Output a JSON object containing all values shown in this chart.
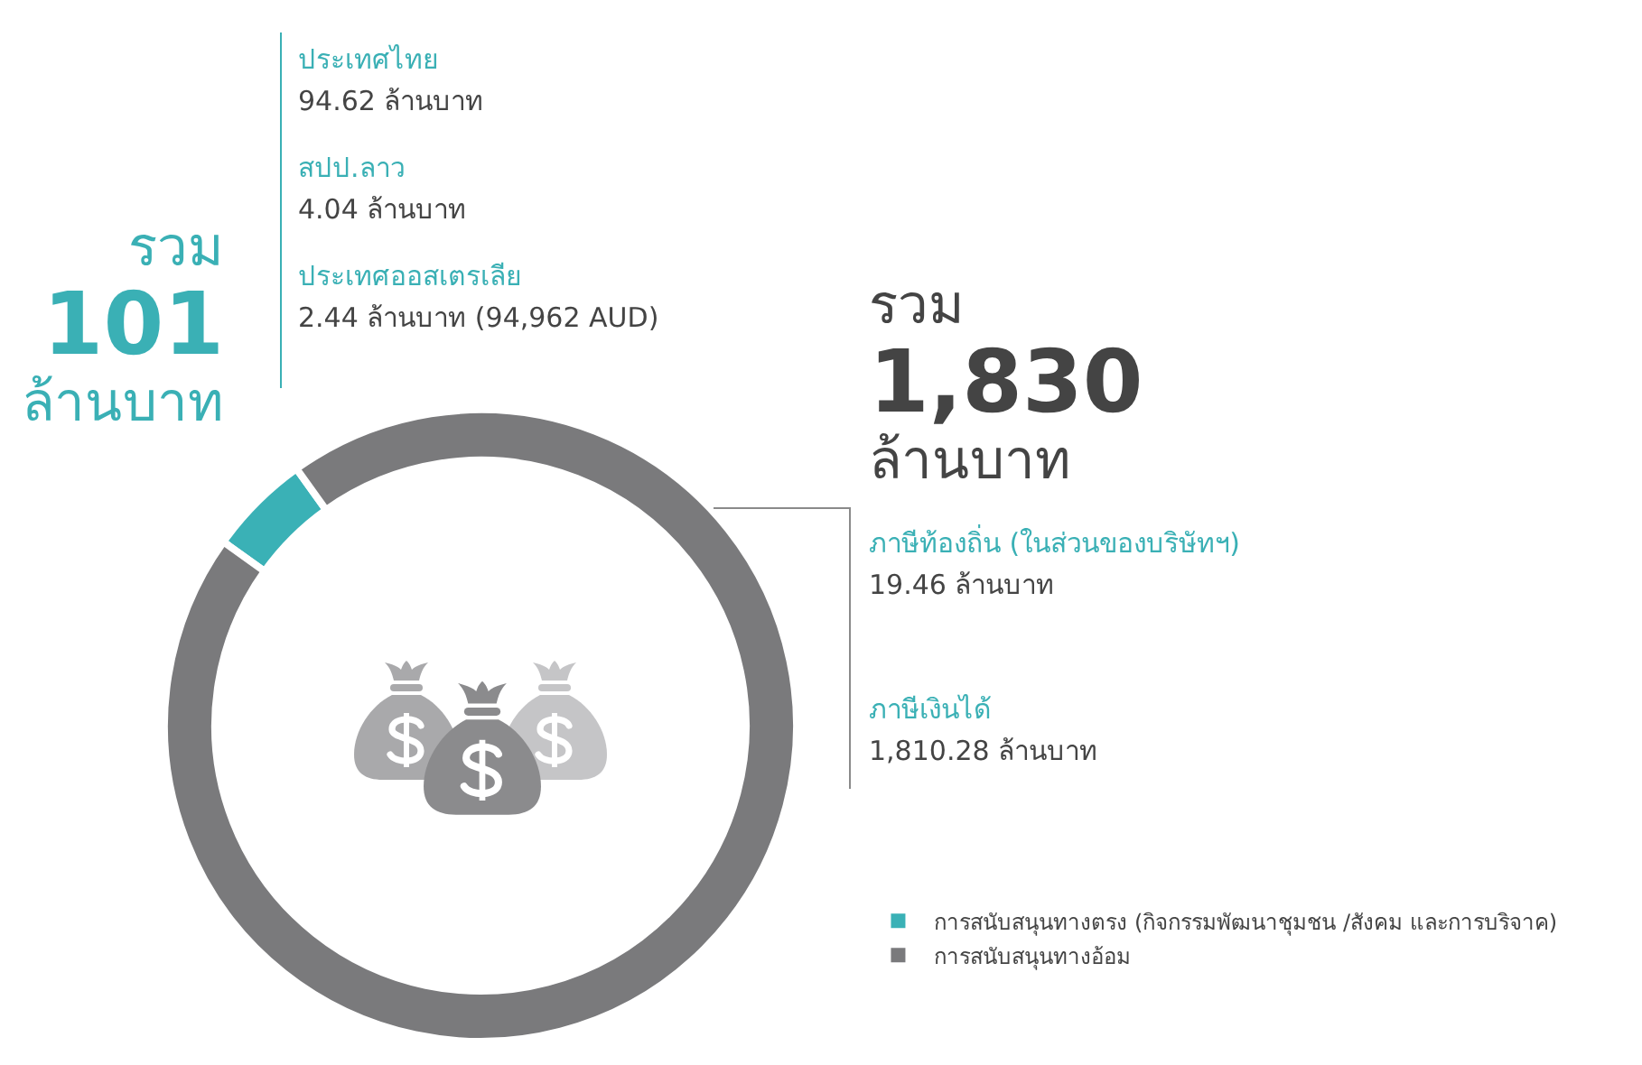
{
  "chart_data": {
    "type": "donut",
    "categories": [
      "การสนับสนุนทางตรง (กิจกรรมพัฒนาชุมชน /สังคม และการบริจาค)",
      "การสนับสนุนทางอ้อม"
    ],
    "values": [
      101,
      1830
    ],
    "colors": [
      "#3ab1b6",
      "#7a7a7c"
    ],
    "value_labels": [
      "รวม\n101\nล้านบาท",
      "รวม\n1,830\nล้านบาท"
    ],
    "annotations": [
      "ประเทศไทย",
      "94.62 ล้านบาท",
      "สปป.ลาว",
      "4.04 ล้านบาท",
      "ประเทศออสเตรเลีย",
      "2.44 ล้านบาท (94,962 AUD)",
      "ภาษีท้องถิ่น (ในส่วนของบริษัทฯ)",
      "19.46 ล้านบาท",
      "ภาษีเงินได้",
      "1,810.28 ล้านบาท"
    ],
    "legend": "bottom right"
  }
}
